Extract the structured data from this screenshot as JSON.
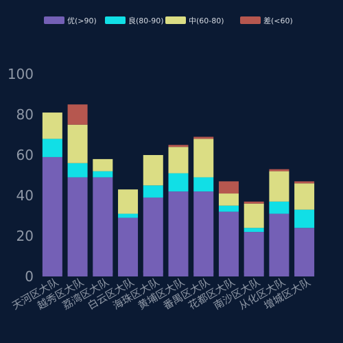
{
  "colors": {
    "background": "#0b1a33",
    "tick_text": "#8f98a6",
    "legend_text": "#d6dbe3"
  },
  "chart_data": {
    "type": "bar",
    "stacked": true,
    "categories": [
      "天河区大队",
      "越秀区大队",
      "荔湾区大队",
      "白云区大队",
      "海珠区大队",
      "黄埔区大队",
      "番禺区大队",
      "花都区大队",
      "南沙区大队",
      "从化区大队",
      "增城区大队"
    ],
    "series": [
      {
        "name": "优(>90)",
        "color": "#7460b6",
        "values": [
          59,
          49,
          49,
          29,
          39,
          42,
          42,
          32,
          22,
          31,
          24
        ]
      },
      {
        "name": "良(80-90)",
        "color": "#11dfe6",
        "values": [
          9,
          7,
          3,
          2,
          6,
          9,
          7,
          3,
          2,
          6,
          9
        ]
      },
      {
        "name": "中(60-80)",
        "color": "#dbdd84",
        "values": [
          13,
          19,
          6,
          12,
          15,
          13,
          19,
          6,
          12,
          15,
          13
        ]
      },
      {
        "name": "差(<60)",
        "color": "#b6574f",
        "values": [
          0,
          10,
          0,
          0,
          0,
          1,
          1,
          6,
          1,
          1,
          1
        ]
      }
    ],
    "yticks": [
      0,
      20,
      40,
      60,
      80,
      100
    ],
    "ylim": [
      0,
      100
    ],
    "grid": false,
    "legend_position": "top-center"
  }
}
